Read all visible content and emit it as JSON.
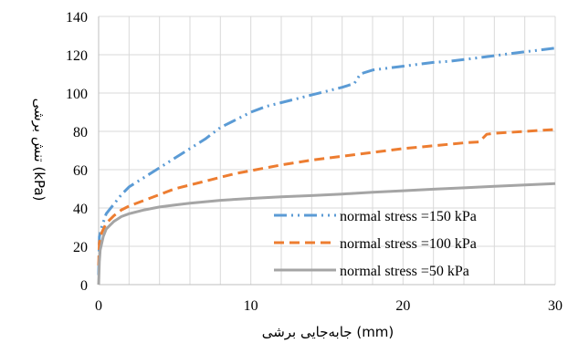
{
  "chart_data": {
    "type": "line",
    "title": "",
    "xlabel": "جابه‌جایی برشی (mm)",
    "ylabel": "تنش برشی (kPa)",
    "xlim": [
      0,
      30
    ],
    "ylim": [
      0,
      140
    ],
    "xticks": [
      0,
      10,
      20,
      30
    ],
    "yticks": [
      0,
      20,
      40,
      60,
      80,
      100,
      120,
      140
    ],
    "grid": true,
    "legend_position": "bottom-right",
    "series": [
      {
        "name": "normal stress =150 kPa",
        "color": "#5b9bd5",
        "style": "dash-dot-dot",
        "x": [
          0,
          0.05,
          0.2,
          0.5,
          1,
          1.5,
          2,
          3,
          4,
          5,
          6,
          7,
          8,
          9,
          10,
          11,
          12,
          13,
          14,
          15,
          16,
          16.8,
          17.2,
          18,
          19,
          20,
          21,
          22,
          23,
          24,
          25,
          26,
          27,
          28,
          29,
          30
        ],
        "y": [
          5,
          25,
          30,
          37,
          42,
          47,
          51,
          56,
          61,
          66,
          71,
          76,
          82,
          86,
          90,
          93,
          95,
          97,
          99,
          101,
          103,
          105,
          110,
          112,
          113,
          114,
          115,
          116,
          116.5,
          117.5,
          118.5,
          119.5,
          120.5,
          121.5,
          122.5,
          123.5
        ]
      },
      {
        "name": "normal stress =100 kPa",
        "color": "#ed7d31",
        "style": "dash",
        "x": [
          0,
          0.05,
          0.2,
          0.5,
          1,
          1.5,
          2,
          3,
          4,
          5,
          6,
          7,
          8,
          9,
          10,
          12,
          14,
          16,
          18,
          20,
          22,
          24,
          25,
          25.5,
          26,
          27,
          28,
          29,
          30
        ],
        "y": [
          10,
          22,
          27,
          32,
          36,
          39,
          41,
          44,
          47,
          50,
          52,
          54,
          56,
          58,
          59.5,
          62.5,
          65,
          67,
          69,
          71,
          72.5,
          74,
          74.5,
          78.5,
          79,
          79.5,
          80,
          80.5,
          81
        ]
      },
      {
        "name": "normal stress =50 kPa",
        "color": "#a5a5a5",
        "style": "solid",
        "x": [
          0,
          0.05,
          0.1,
          0.3,
          0.5,
          1,
          1.5,
          2,
          3,
          4,
          5,
          6,
          8,
          10,
          12,
          14,
          16,
          18,
          20,
          22,
          24,
          26,
          28,
          30
        ],
        "y": [
          0,
          12,
          18,
          25,
          29,
          33,
          35.5,
          37,
          39,
          40.5,
          41.5,
          42.5,
          44,
          45,
          45.8,
          46.5,
          47.3,
          48.2,
          49,
          49.8,
          50.5,
          51.3,
          52,
          52.7
        ]
      }
    ]
  }
}
